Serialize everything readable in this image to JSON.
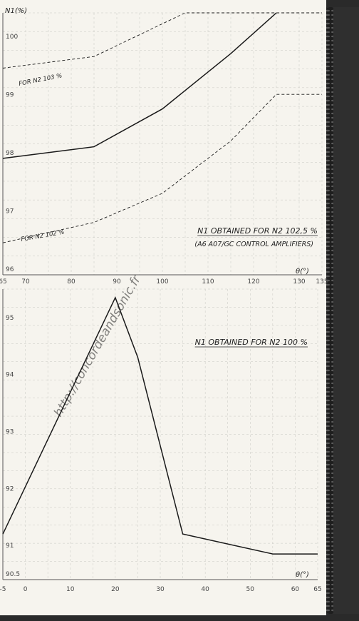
{
  "watermark": "http://concordeandsonic.fr",
  "chart_data": [
    {
      "type": "line",
      "title": "N1 OBTAINED FOR N2 102,5 %",
      "subtitle": "(A6 A07/GC CONTROL AMPLIFIERS)",
      "ylabel": "N1(%)",
      "xlabel": "θ(°)",
      "xlim": [
        65,
        135
      ],
      "ylim": [
        96,
        100.5
      ],
      "x_ticks": [
        65,
        70,
        80,
        90,
        100,
        110,
        120,
        130,
        135
      ],
      "y_ticks": [
        96,
        97,
        98,
        99,
        100
      ],
      "grid": true,
      "series": [
        {
          "name": "FOR N2 103 %",
          "style": "dashed",
          "x": [
            65,
            85,
            105,
            135
          ],
          "y": [
            99.55,
            99.75,
            100.5,
            100.5
          ]
        },
        {
          "name": "",
          "style": "solid",
          "x": [
            65,
            85,
            100,
            115,
            125
          ],
          "y": [
            98.0,
            98.2,
            98.85,
            99.8,
            100.5
          ]
        },
        {
          "name": "FOR N2 102 %",
          "style": "dashed",
          "x": [
            65,
            85,
            100,
            115,
            125,
            135
          ],
          "y": [
            96.55,
            96.9,
            97.4,
            98.3,
            99.1,
            99.1
          ]
        }
      ]
    },
    {
      "type": "line",
      "title": "N1 OBTAINED FOR N2 100 %",
      "xlabel": "θ(°)",
      "xlim": [
        -5,
        65
      ],
      "ylim": [
        90.5,
        95.6
      ],
      "x_ticks": [
        -5,
        0,
        10,
        20,
        30,
        40,
        50,
        60,
        65
      ],
      "y_ticks": [
        90.5,
        91,
        92,
        93,
        94,
        95
      ],
      "grid": true,
      "series": [
        {
          "name": "",
          "style": "solid",
          "x": [
            -5,
            20,
            25,
            35,
            55,
            65
          ],
          "y": [
            91.3,
            95.45,
            94.4,
            91.3,
            90.95,
            90.95
          ]
        }
      ]
    }
  ]
}
